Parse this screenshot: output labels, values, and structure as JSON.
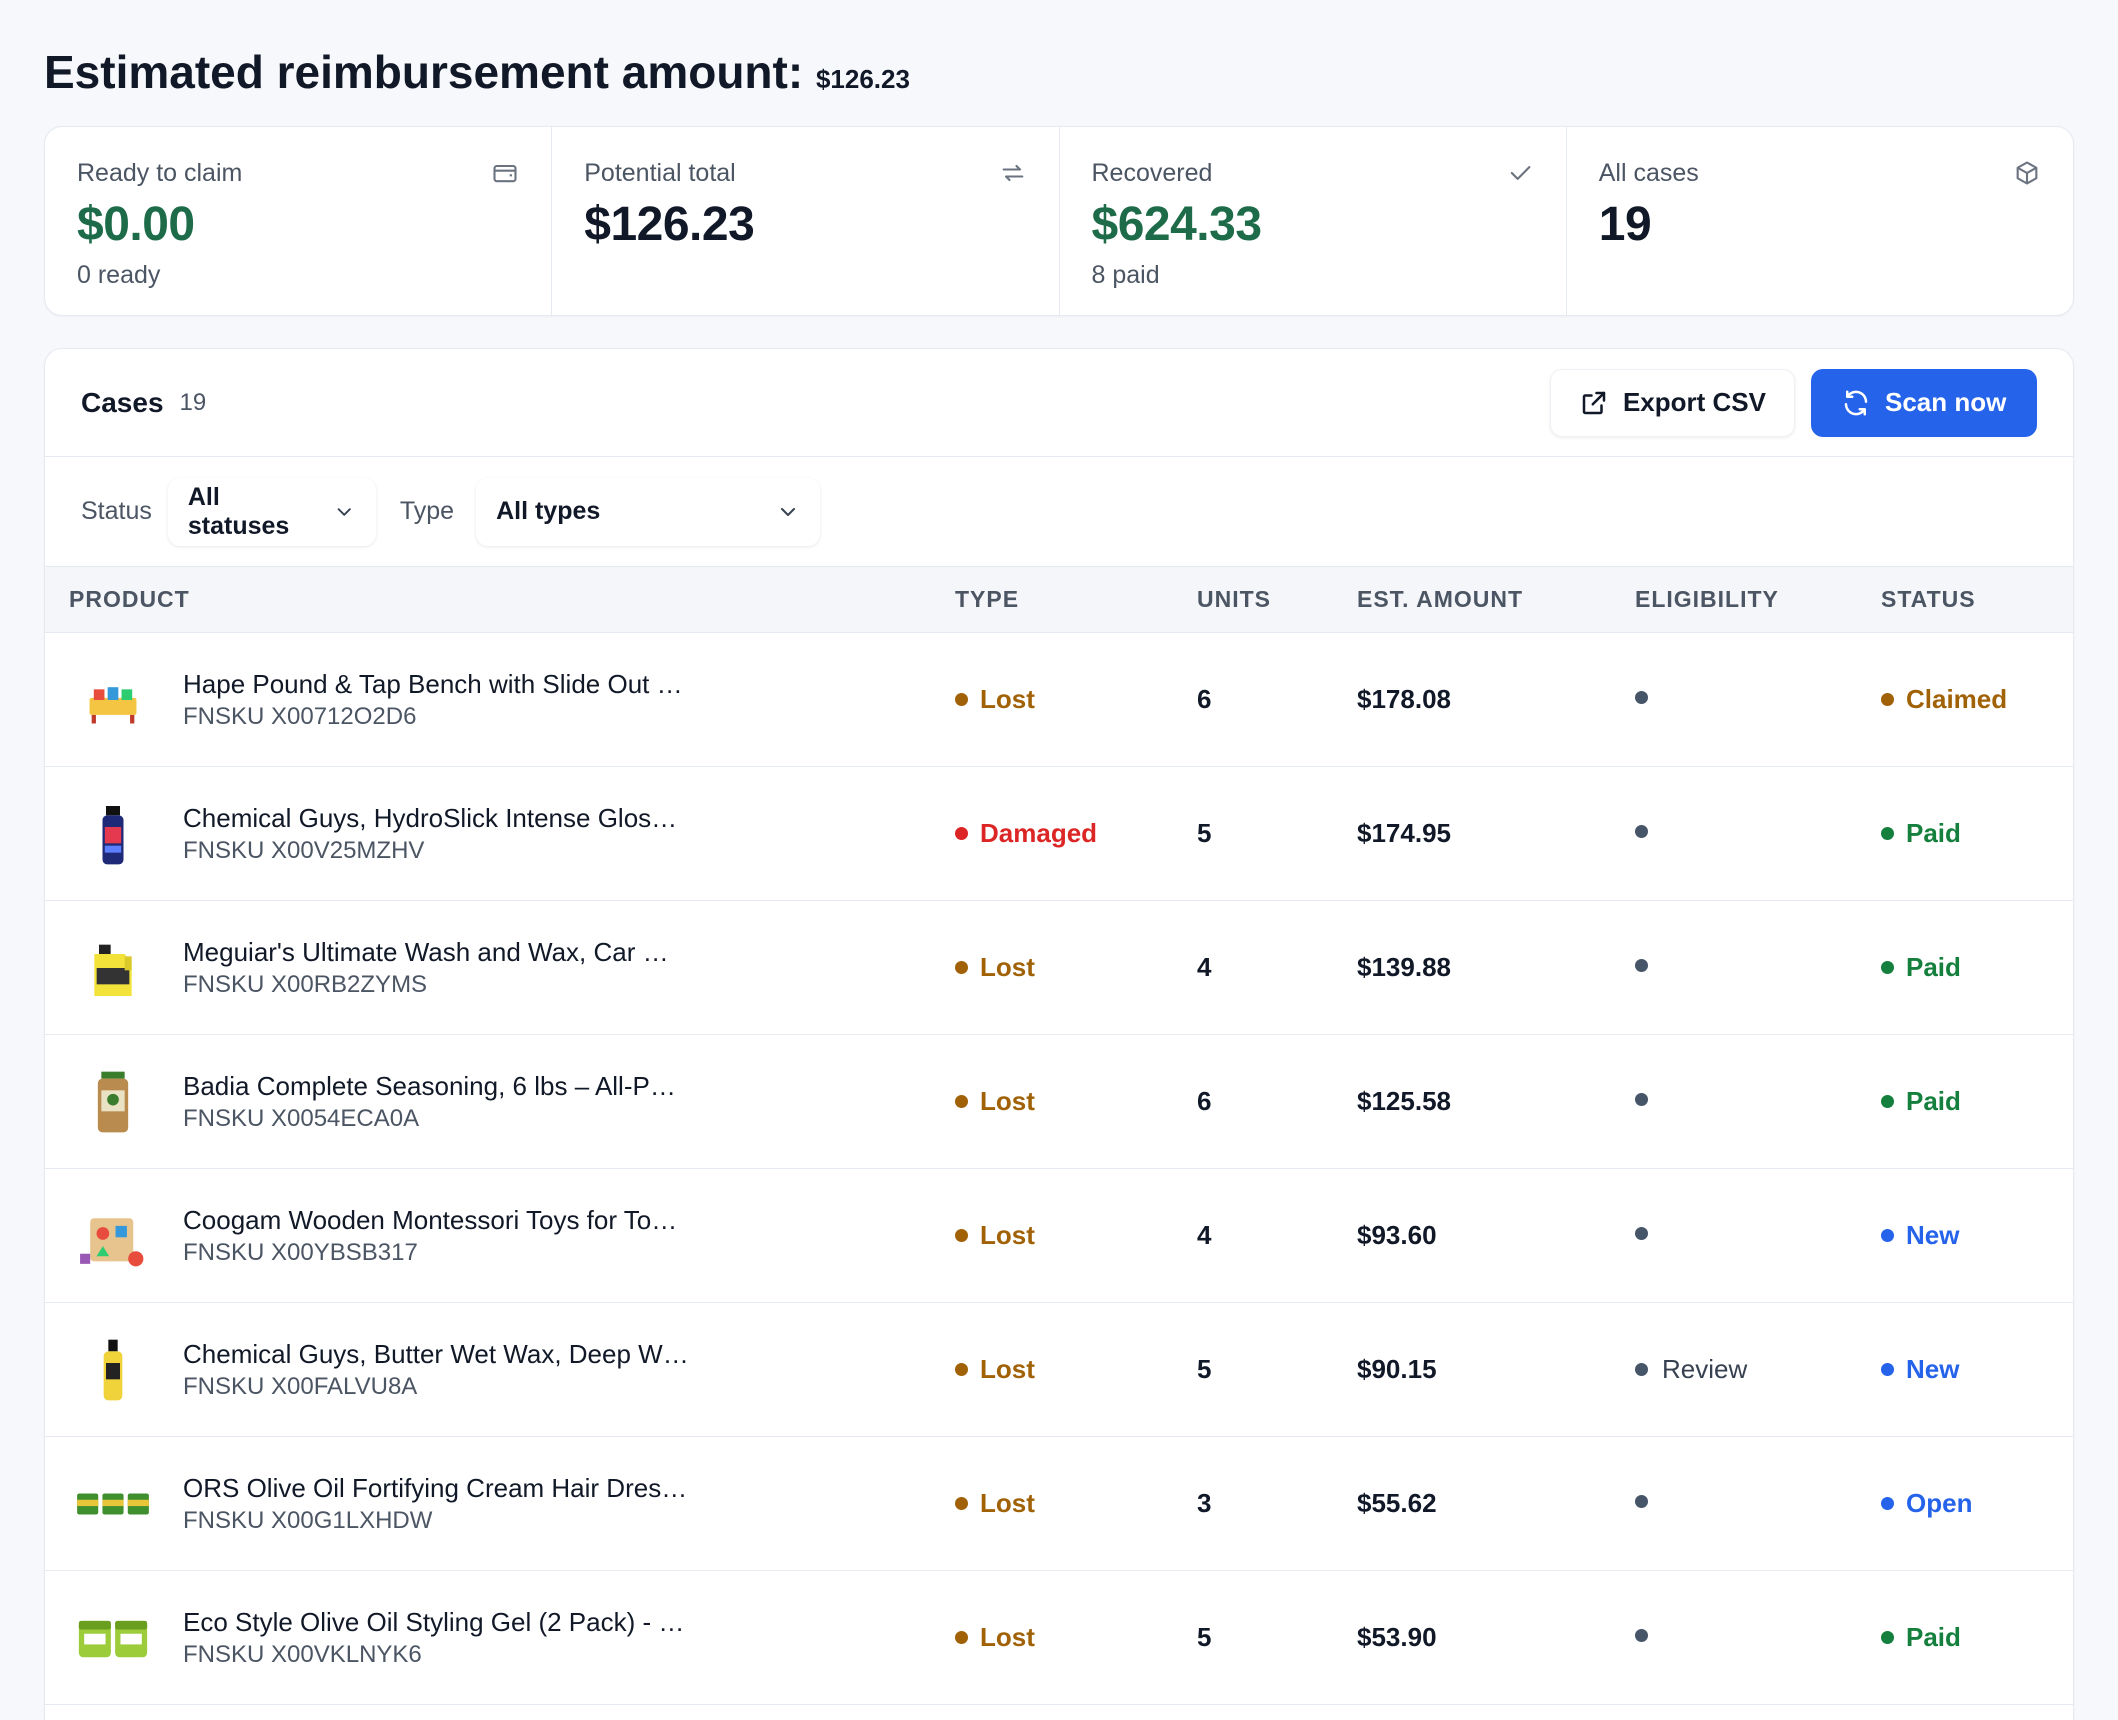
{
  "header": {
    "title_prefix": "Estimated reimbursement amount: ",
    "title_amount": "$126.23"
  },
  "stats": [
    {
      "label": "Ready to claim",
      "value": "$0.00",
      "sub": "0 ready",
      "icon": "wallet-icon"
    },
    {
      "label": "Potential total",
      "value": "$126.23",
      "sub": "",
      "icon": "transfer-icon"
    },
    {
      "label": "Recovered",
      "value": "$624.33",
      "sub": "8 paid",
      "icon": "check-icon"
    },
    {
      "label": "All cases",
      "value": "19",
      "sub": "",
      "icon": "box-icon"
    }
  ],
  "cases": {
    "title": "Cases",
    "count": "19",
    "export_label": "Export CSV",
    "scan_label": "Scan now"
  },
  "filters": {
    "status_label": "Status",
    "status_value": "All statuses",
    "type_label": "Type",
    "type_value": "All types"
  },
  "columns": {
    "product": "PRODUCT",
    "type": "TYPE",
    "units": "UNITS",
    "amount": "EST. AMOUNT",
    "eligibility": "ELIGIBILITY",
    "status": "STATUS"
  },
  "colors": {
    "lost": "#a16207",
    "damaged": "#dc2626",
    "claimed": "#a16207",
    "paid": "#15803d",
    "new": "#2563eb",
    "open": "#2563eb"
  },
  "rows": [
    {
      "name": "Hape Pound & Tap Bench with Slide Out …",
      "sku": "FNSKU X00712O2D6",
      "type": "Lost",
      "units": "6",
      "amount": "$178.08",
      "eligibility": "",
      "status": "Claimed",
      "thumb": "toy-bench"
    },
    {
      "name": "Chemical Guys, HydroSlick Intense Glos…",
      "sku": "FNSKU X00V25MZHV",
      "type": "Damaged",
      "units": "5",
      "amount": "$174.95",
      "eligibility": "",
      "status": "Paid",
      "thumb": "bottle-blue"
    },
    {
      "name": "Meguiar's Ultimate Wash and Wax, Car …",
      "sku": "FNSKU X00RB2ZYMS",
      "type": "Lost",
      "units": "4",
      "amount": "$139.88",
      "eligibility": "",
      "status": "Paid",
      "thumb": "jug-yellow"
    },
    {
      "name": "Badia Complete Seasoning, 6 lbs – All-P…",
      "sku": "FNSKU X0054ECA0A",
      "type": "Lost",
      "units": "6",
      "amount": "$125.58",
      "eligibility": "",
      "status": "Paid",
      "thumb": "jar-seasoning"
    },
    {
      "name": "Coogam Wooden Montessori Toys for To…",
      "sku": "FNSKU X00YBSB317",
      "type": "Lost",
      "units": "4",
      "amount": "$93.60",
      "eligibility": "",
      "status": "New",
      "thumb": "toy-cube"
    },
    {
      "name": "Chemical Guys, Butter Wet Wax, Deep W…",
      "sku": "FNSKU X00FALVU8A",
      "type": "Lost",
      "units": "5",
      "amount": "$90.15",
      "eligibility": "Review",
      "status": "New",
      "thumb": "bottle-yellow"
    },
    {
      "name": "ORS Olive Oil Fortifying Cream Hair Dres…",
      "sku": "FNSKU X00G1LXHDW",
      "type": "Lost",
      "units": "3",
      "amount": "$55.62",
      "eligibility": "",
      "status": "Open",
      "thumb": "jars-green"
    },
    {
      "name": "Eco Style Olive Oil Styling Gel (2 Pack) - …",
      "sku": "FNSKU X00VKLNYK6",
      "type": "Lost",
      "units": "5",
      "amount": "$53.90",
      "eligibility": "",
      "status": "Paid",
      "thumb": "gel-pack"
    }
  ]
}
